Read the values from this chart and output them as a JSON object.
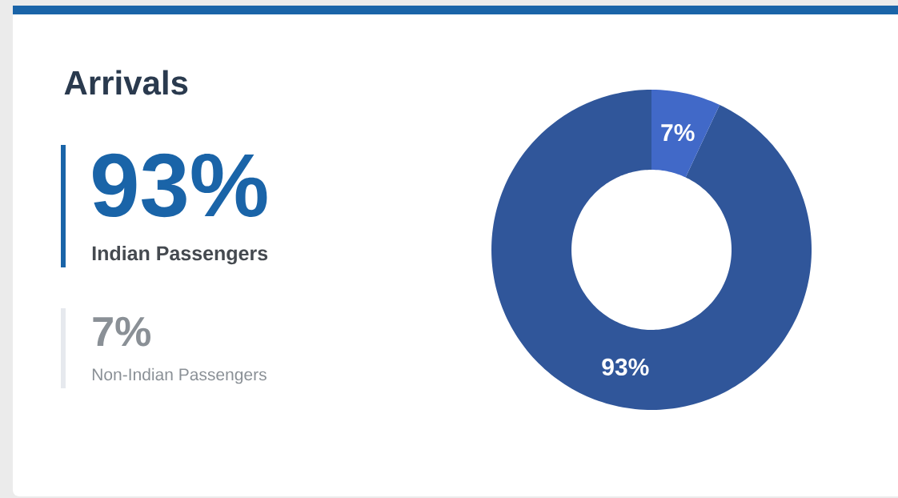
{
  "chart_data": [
    {
      "type": "other",
      "title": "Arrivals",
      "annotations": [
        "93%",
        "Indian Passengers",
        "7%",
        "Non-Indian Passengers"
      ]
    },
    {
      "type": "donut",
      "categories": [
        null,
        null
      ],
      "values": [
        93,
        7
      ],
      "colors": [
        "#30569a",
        "#4169c8"
      ],
      "value_labels": [
        "93%",
        "7%"
      ]
    }
  ]
}
